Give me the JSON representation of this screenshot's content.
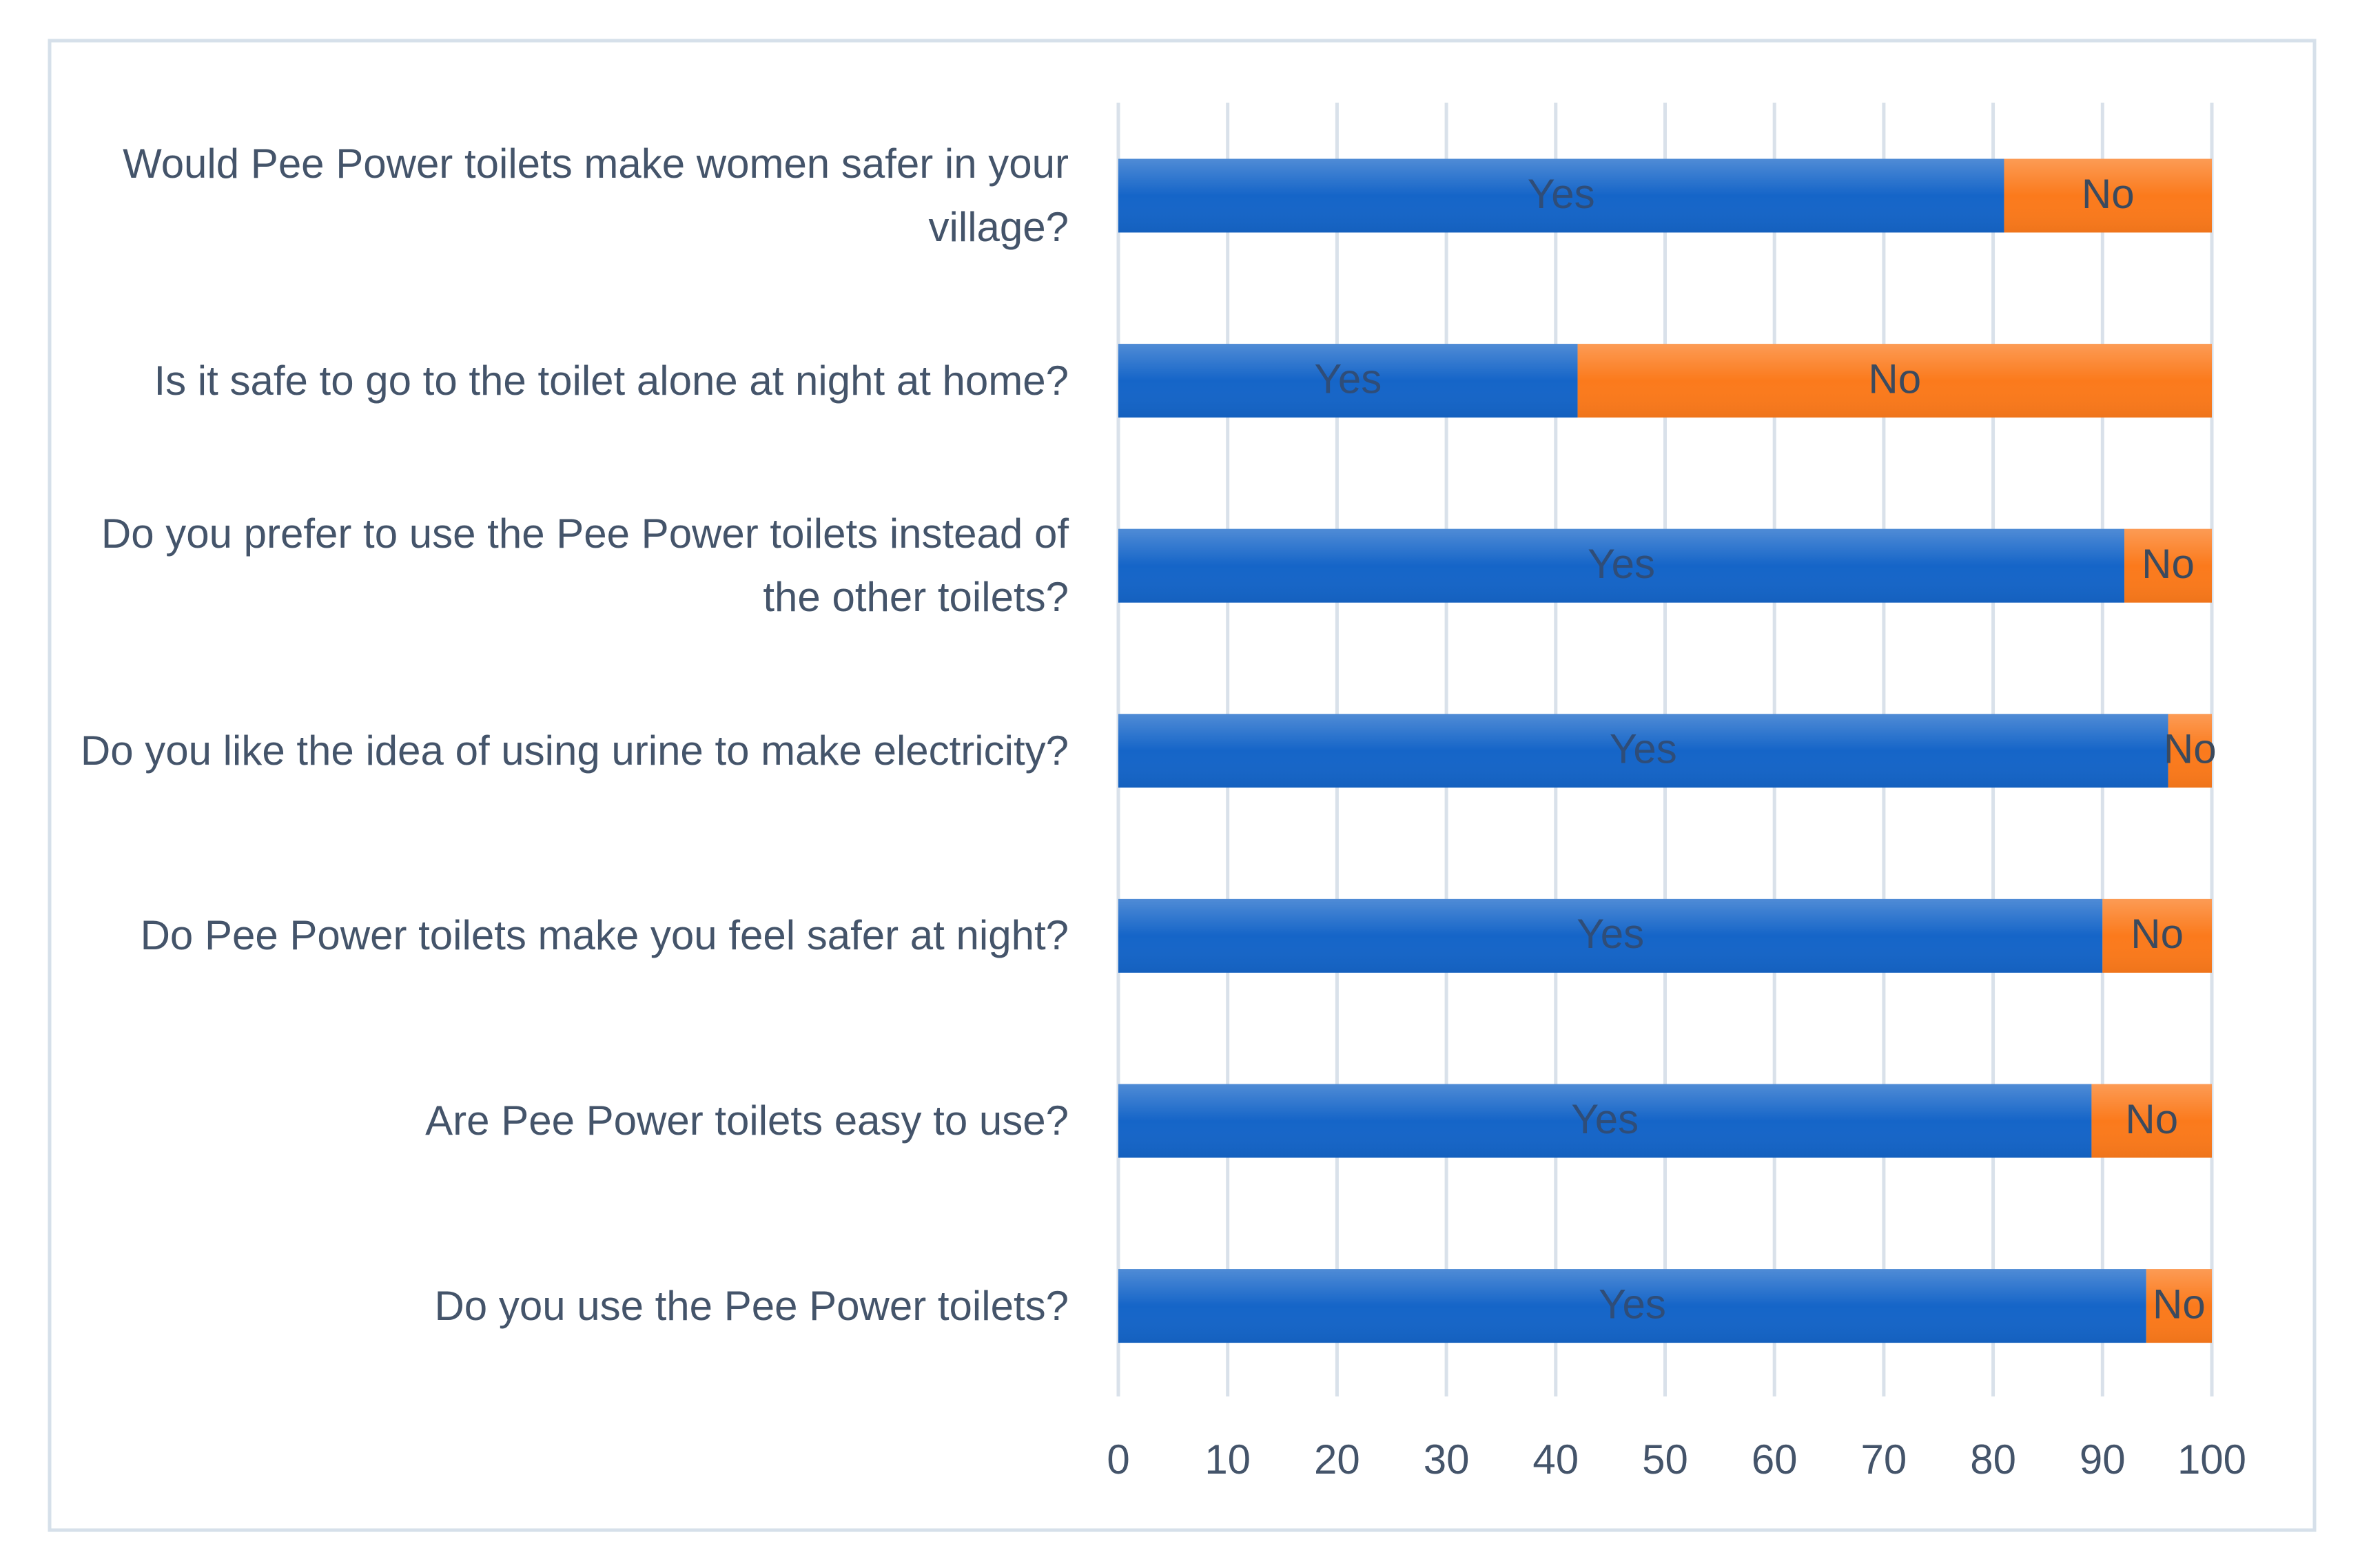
{
  "chart_data": {
    "type": "stacked-bar-horizontal",
    "categories": [
      "Would Pee Power toilets make women safer in your village?",
      "Is it safe to go to the toilet alone at night at home?",
      "Do you prefer to use the Pee Power toilets instead of the other toilets?",
      "Do you like the idea of using urine to make electricity?",
      "Do Pee Power toilets make you feel safer at night?",
      "Are Pee Power toilets easy to use?",
      "Do you use the Pee Power toilets?"
    ],
    "series": [
      {
        "name": "Yes",
        "color": "#1565c8",
        "values": [
          81,
          42,
          92,
          96,
          90,
          89,
          94
        ]
      },
      {
        "name": "No",
        "color": "#fb7a1c",
        "values": [
          19,
          58,
          8,
          4,
          10,
          11,
          6
        ]
      }
    ],
    "xlim": [
      0,
      100
    ],
    "xticks": [
      0,
      10,
      20,
      30,
      40,
      50,
      60,
      70,
      80,
      90,
      100
    ],
    "grid": true
  }
}
